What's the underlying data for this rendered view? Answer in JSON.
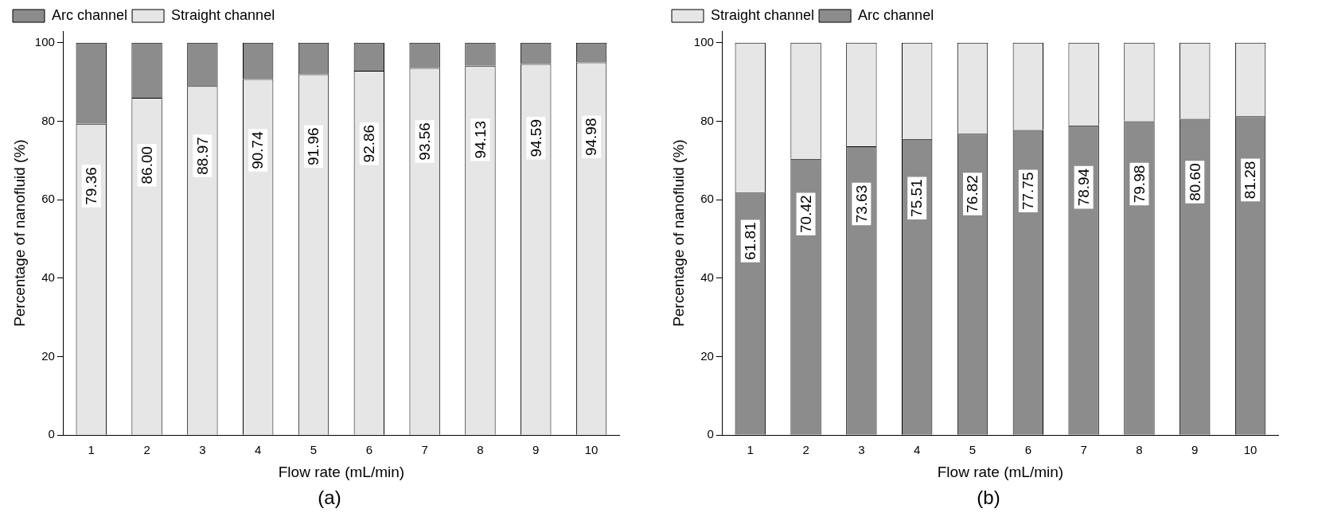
{
  "chart_data": [
    {
      "type": "bar",
      "stacked": true,
      "categories": [
        "1",
        "2",
        "3",
        "4",
        "5",
        "6",
        "7",
        "8",
        "9",
        "10"
      ],
      "xlabel": "Flow rate (mL/min)",
      "ylabel": "Percentage of nanofluid (%)",
      "ylim": [
        0,
        100
      ],
      "yticks": [
        0,
        20,
        40,
        60,
        80,
        100
      ],
      "legend": "top left",
      "annotations": [
        "(a)"
      ],
      "series": [
        {
          "name": "Straight channel",
          "color": "#e6e6e6",
          "values": [
            79.36,
            86.0,
            88.97,
            90.74,
            91.96,
            92.86,
            93.56,
            94.13,
            94.59,
            94.98
          ],
          "value_labels": [
            "79.36",
            "86.00",
            "88.97",
            "90.74",
            "91.96",
            "92.86",
            "93.56",
            "94.13",
            "94.59",
            "94.98"
          ]
        },
        {
          "name": "Arc channel",
          "color": "#8c8c8c",
          "values": [
            20.64,
            14.0,
            11.03,
            9.26,
            8.04,
            7.14,
            6.44,
            5.87,
            5.41,
            5.02
          ]
        }
      ]
    },
    {
      "type": "bar",
      "stacked": true,
      "categories": [
        "1",
        "2",
        "3",
        "4",
        "5",
        "6",
        "7",
        "8",
        "9",
        "10"
      ],
      "xlabel": "Flow rate (mL/min)",
      "ylabel": "Percentage of nanofluid (%)",
      "ylim": [
        0,
        100
      ],
      "yticks": [
        0,
        20,
        40,
        60,
        80,
        100
      ],
      "legend": "top left",
      "annotations": [
        "(b)"
      ],
      "series": [
        {
          "name": "Arc channel",
          "color": "#8c8c8c",
          "values": [
            61.81,
            70.42,
            73.63,
            75.51,
            76.82,
            77.75,
            78.94,
            79.98,
            80.6,
            81.28
          ],
          "value_labels": [
            "61.81",
            "70.42",
            "73.63",
            "75.51",
            "76.82",
            "77.75",
            "78.94",
            "79.98",
            "80.60",
            "81.28"
          ]
        },
        {
          "name": "Straight channel",
          "color": "#e6e6e6",
          "values": [
            38.19,
            29.58,
            26.37,
            24.49,
            23.18,
            22.25,
            21.06,
            20.02,
            19.4,
            18.72
          ]
        }
      ]
    }
  ]
}
